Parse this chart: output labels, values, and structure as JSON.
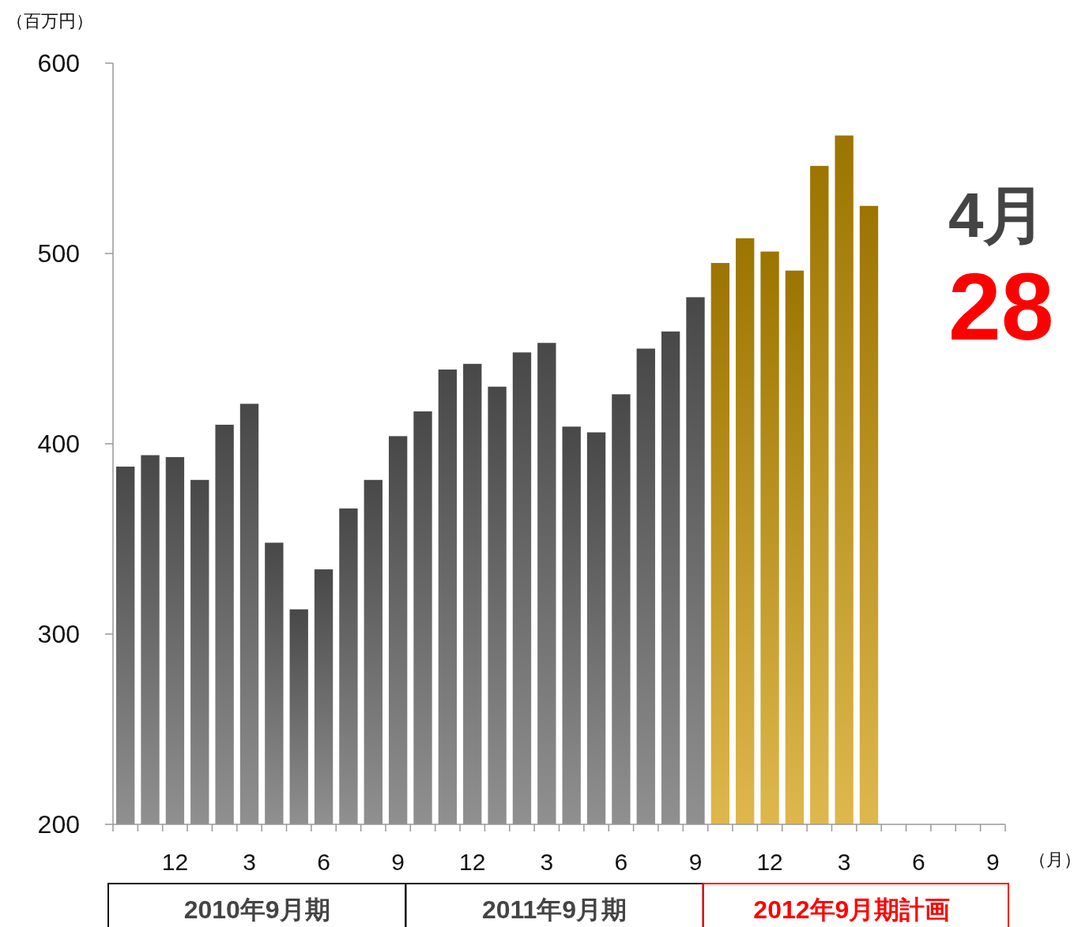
{
  "chart_data": {
    "type": "bar",
    "ylabel": "（百万円）",
    "xlabel": "（月）",
    "categories": [
      null,
      null,
      "12",
      null,
      null,
      "3",
      null,
      null,
      "6",
      null,
      null,
      "9",
      null,
      null,
      "12",
      null,
      null,
      "3",
      null,
      null,
      "6",
      null,
      null,
      "9",
      null,
      null,
      "12",
      null,
      null,
      "3",
      null,
      null,
      "6",
      null,
      null,
      "9"
    ],
    "values": [
      388,
      394,
      393,
      381,
      410,
      421,
      348,
      313,
      334,
      366,
      381,
      404,
      417,
      439,
      442,
      430,
      448,
      453,
      409,
      406,
      426,
      450,
      459,
      477,
      495,
      508,
      501,
      491,
      546,
      562,
      525,
      null,
      null,
      null,
      null,
      null
    ],
    "colors": [
      "#606060",
      "#606060",
      "#606060",
      "#606060",
      "#606060",
      "#606060",
      "#606060",
      "#606060",
      "#606060",
      "#606060",
      "#606060",
      "#606060",
      "#606060",
      "#606060",
      "#606060",
      "#606060",
      "#606060",
      "#606060",
      "#606060",
      "#606060",
      "#606060",
      "#606060",
      "#606060",
      "#606060",
      "#d09a00",
      "#d09a00",
      "#d09a00",
      "#d09a00",
      "#d09a00",
      "#d09a00",
      "#d09a00",
      null,
      null,
      null,
      null,
      null
    ],
    "ylim": [
      200,
      600
    ],
    "yticks": [
      200,
      300,
      400,
      500,
      600
    ],
    "grid": false,
    "annotations": [
      "2010年9月期",
      "2011年9月期",
      "2012年9月期計画",
      "4月",
      "28"
    ]
  }
}
